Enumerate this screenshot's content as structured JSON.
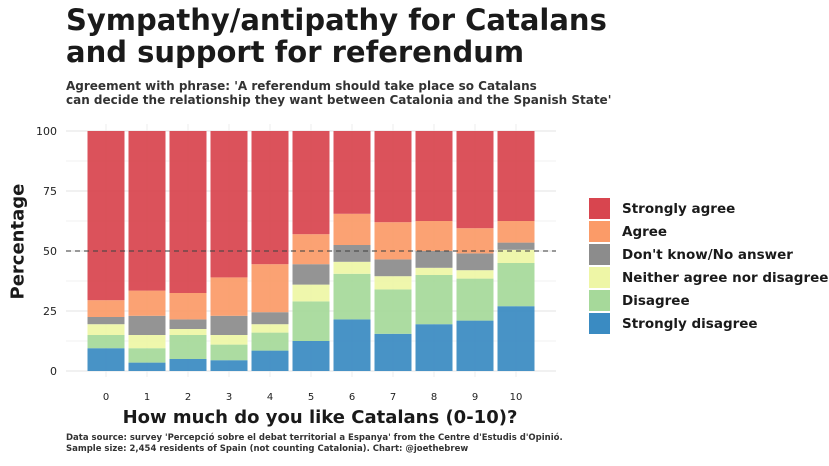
{
  "title": [
    "Sympathy/antipathy for Catalans",
    "and support for  referendum"
  ],
  "subtitle": [
    "Agreement with phrase: 'A referendum should take place so Catalans",
    "can decide the relationship they want between Catalonia and the Spanish State'"
  ],
  "caption": [
    "Data source: survey 'Percepció sobre el debat territorial a Espanya' from the Centre d'Estudis d'Opinió.",
    "Sample size: 2,454 residents of Spain (not counting Catalonia). Chart: @joethebrew"
  ],
  "chart_data": {
    "type": "bar",
    "stacked": true,
    "categories": [
      "0",
      "1",
      "2",
      "3",
      "4",
      "5",
      "6",
      "7",
      "8",
      "9",
      "10"
    ],
    "xlabel": "How much do you like Catalans (0-10)?",
    "ylabel": "Percentage",
    "ylim": [
      0,
      100
    ],
    "yticks": [
      "0",
      "25",
      "50",
      "75",
      "100"
    ],
    "reference_line": 50,
    "grid": true,
    "legend_position": "right",
    "series": [
      {
        "name": "Strongly disagree",
        "color": "#3a8bc2",
        "values": [
          9.5,
          3.5,
          5,
          4.5,
          8.5,
          12.5,
          21.5,
          15.5,
          19.5,
          21,
          27
        ]
      },
      {
        "name": "Disagree",
        "color": "#a6d99a",
        "values": [
          5.5,
          6,
          10,
          6.5,
          7.5,
          16.5,
          19,
          18.5,
          20.5,
          17.5,
          18
        ]
      },
      {
        "name": "Neither agree nor disagree",
        "color": "#eef6a6",
        "values": [
          4.5,
          5.5,
          2.5,
          4,
          3.5,
          7,
          5,
          5.5,
          3,
          3.5,
          5.5
        ]
      },
      {
        "name": "Don't know/No answer",
        "color": "#8c8c8c",
        "values": [
          3,
          8,
          4,
          8,
          5,
          8.5,
          7,
          7,
          7,
          7,
          3
        ]
      },
      {
        "name": "Agree",
        "color": "#fb9b68",
        "values": [
          7,
          10.5,
          11,
          16,
          20,
          12.5,
          13,
          15.5,
          12.5,
          10.5,
          9
        ]
      },
      {
        "name": "Strongly agree",
        "color": "#d8454f",
        "values": [
          70.5,
          66.5,
          67.5,
          61,
          55.5,
          43,
          34.5,
          38,
          37.5,
          40.5,
          37.5
        ]
      }
    ]
  }
}
